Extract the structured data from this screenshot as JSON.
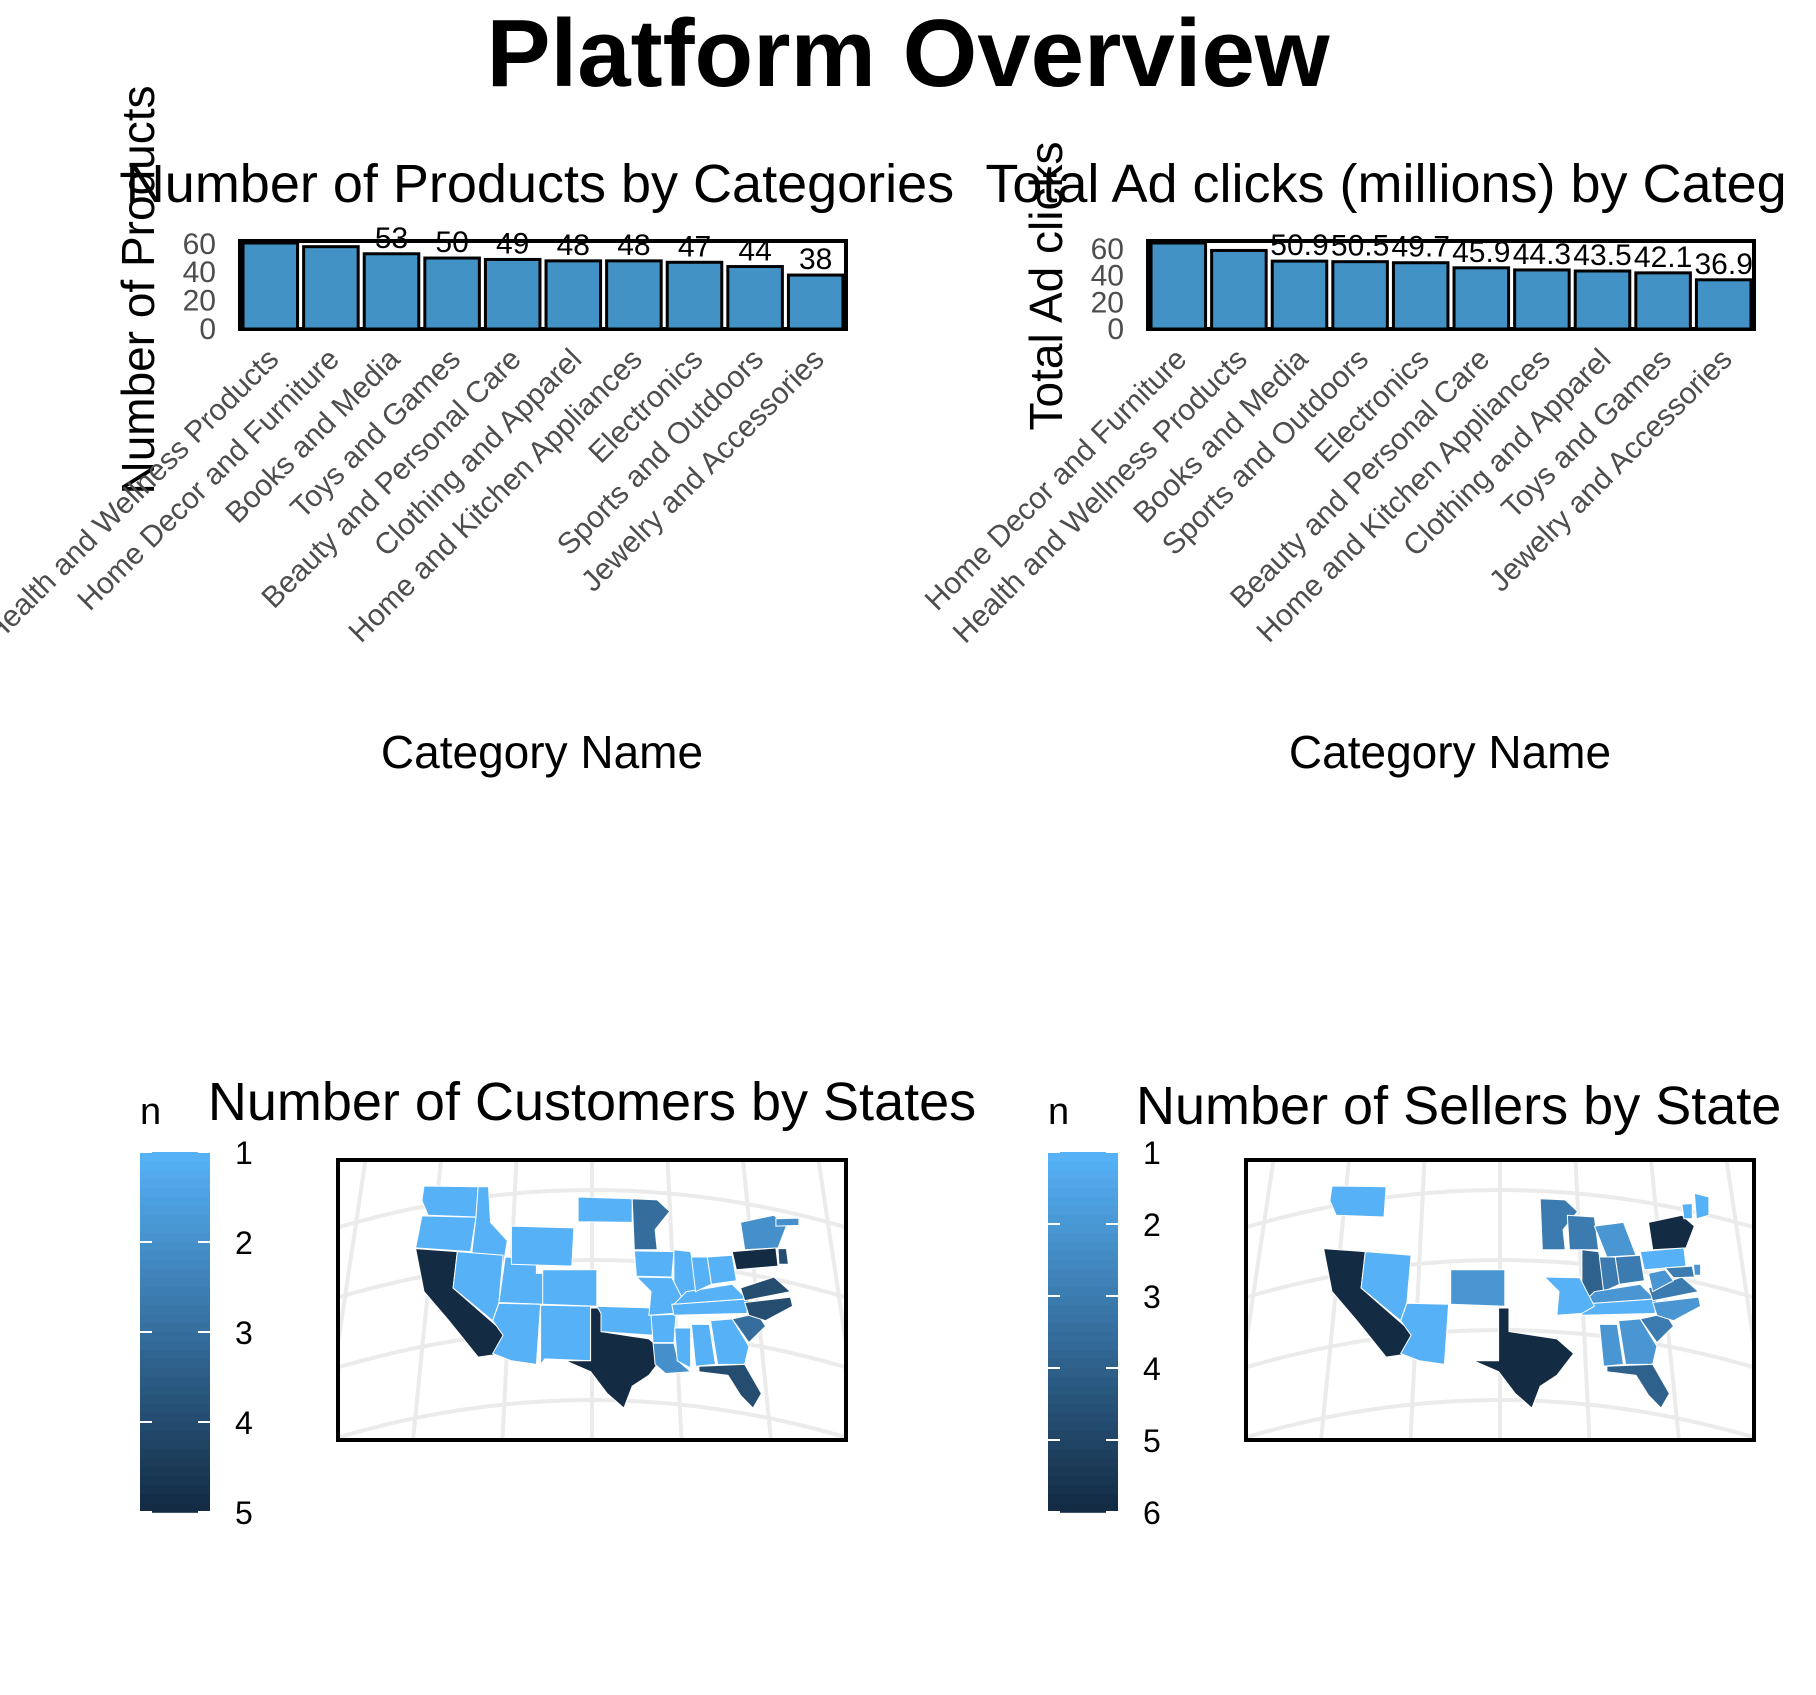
{
  "title": "Platform Overview",
  "chart_data": [
    {
      "type": "bar",
      "title": "Number of Products by Categories",
      "xlabel": "Category Name",
      "ylabel": "Number of Products",
      "yticks": [
        0,
        20,
        40,
        60
      ],
      "ylim": [
        0,
        62
      ],
      "color": "#4292c6",
      "categories": [
        "Health and Wellness Products",
        "Home Decor and Furniture",
        "Books and Media",
        "Toys and Games",
        "Beauty and Personal Care",
        "Clothing and Apparel",
        "Home and Kitchen Appliances",
        "Electronics",
        "Sports and Outdoors",
        "Jewelry and Accessories"
      ],
      "values": [
        61,
        58,
        53,
        50,
        49,
        48,
        48,
        47,
        44,
        38
      ],
      "labels": [
        "",
        "",
        "53",
        "50",
        "49",
        "48",
        "48",
        "47",
        "44",
        "38"
      ]
    },
    {
      "type": "bar",
      "title": "Total Ad clicks (millions) by Categ",
      "xlabel": "Category Name",
      "ylabel": "Total Ad clicks",
      "yticks": [
        0,
        20,
        40,
        60
      ],
      "ylim": [
        0,
        66
      ],
      "color": "#4292c6",
      "categories": [
        "Home Decor and Furniture",
        "Health and Wellness Products",
        "Books and Media",
        "Sports and Outdoors",
        "Electronics",
        "Beauty and Personal Care",
        "Home and Kitchen Appliances",
        "Clothing and Apparel",
        "Toys and Games",
        "Jewelry and Accessories"
      ],
      "values": [
        66,
        58.9,
        50.9,
        50.5,
        49.7,
        45.9,
        44.3,
        43.5,
        42.1,
        36.9
      ],
      "labels": [
        "",
        "",
        "50.9",
        "50.5",
        "49.7",
        "45.9",
        "44.3",
        "43.5",
        "42.1",
        "36.9"
      ]
    },
    {
      "type": "map",
      "title": "Number of Customers by States",
      "legend_title": "n",
      "legend_ticks": [
        "1",
        "2",
        "3",
        "4",
        "5"
      ],
      "color_low": "#56b1f7",
      "color_high": "#132b43",
      "states": {
        "WA": 1,
        "OR": 1,
        "ID": 1,
        "CA": 5,
        "NV": 1,
        "AZ": 1,
        "UT": 1,
        "WY": 1,
        "CO": 1,
        "NM": 1,
        "ND": 1,
        "MN": 3,
        "TX": 5,
        "OK": 1,
        "IA": 1,
        "IL": 1,
        "MO": 1,
        "AR": 1,
        "LA": 2,
        "MS": 1,
        "AL": 1,
        "TN": 1,
        "KY": 1,
        "GA": 1,
        "FL": 4,
        "SC": 3,
        "NC": 4,
        "VA": 4,
        "OH": 1,
        "IN": 1,
        "PA": 5,
        "NY": 2,
        "MA": 2,
        "NJ": 4
      }
    },
    {
      "type": "map",
      "title": "Number of Sellers by State",
      "legend_title": "n",
      "legend_ticks": [
        "1",
        "2",
        "3",
        "4",
        "5",
        "6"
      ],
      "color_low": "#56b1f7",
      "color_high": "#132b43",
      "states": {
        "WA": 1,
        "CA": 6,
        "NV": 1,
        "AZ": 1,
        "CO": 2,
        "TX": 6,
        "MN": 3,
        "WI": 3,
        "MI": 2,
        "IL": 4,
        "IN": 3,
        "OH": 3,
        "KY": 2,
        "TN": 1,
        "MO": 1,
        "AL": 2,
        "GA": 2,
        "FL": 4,
        "SC": 3,
        "NC": 2,
        "VA": 3,
        "WV": 2,
        "PA": 1,
        "NY": 6,
        "VT": 1,
        "ME": 1,
        "MD": 3,
        "DE": 2
      }
    }
  ]
}
